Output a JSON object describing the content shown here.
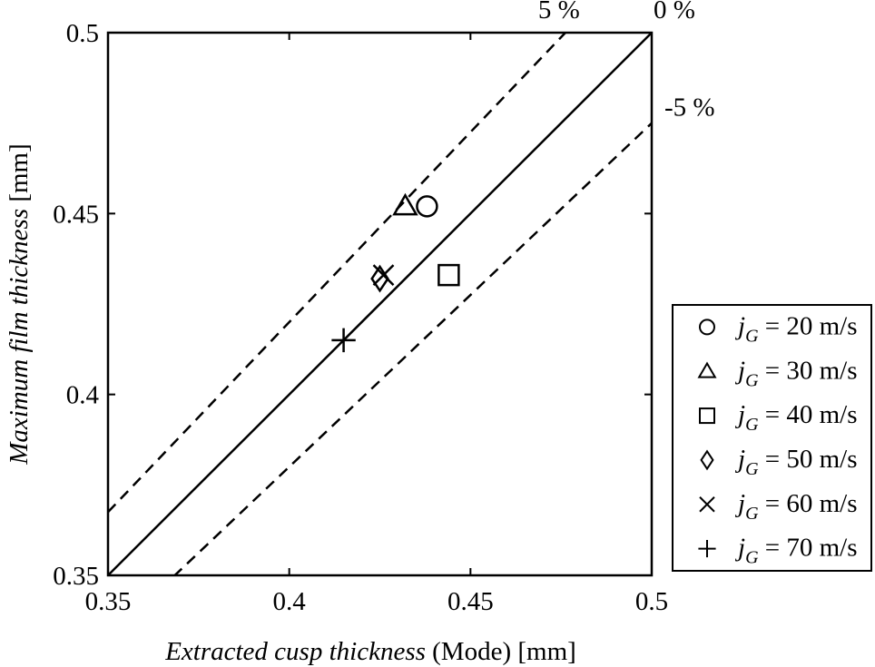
{
  "chart_data": {
    "type": "scatter",
    "x_label": "Extracted cusp thickness (Mode) [mm]",
    "y_label": "Maximum film thickness  [mm]",
    "xlim": [
      0.35,
      0.5
    ],
    "ylim": [
      0.35,
      0.5
    ],
    "xticks": [
      0.35,
      0.4,
      0.45,
      0.5
    ],
    "yticks": [
      0.35,
      0.4,
      0.45,
      0.5
    ],
    "reference_lines": [
      {
        "label": "5 %",
        "percent": 5
      },
      {
        "label": "0 %",
        "percent": 0
      },
      {
        "label": "-5 %",
        "percent": -5
      }
    ],
    "series": [
      {
        "name": "jG = 20 m/s",
        "marker": "circle",
        "color": "#000000",
        "x": [
          0.438
        ],
        "values": [
          0.452
        ]
      },
      {
        "name": "jG = 30 m/s",
        "marker": "triangle",
        "color": "#000000",
        "x": [
          0.432
        ],
        "values": [
          0.452
        ]
      },
      {
        "name": "jG = 40 m/s",
        "marker": "square",
        "color": "#000000",
        "x": [
          0.444
        ],
        "values": [
          0.433
        ]
      },
      {
        "name": "jG = 50 m/s",
        "marker": "diamond",
        "color": "#000000",
        "x": [
          0.425
        ],
        "values": [
          0.432
        ]
      },
      {
        "name": "jG = 60 m/s",
        "marker": "x",
        "color": "#000000",
        "x": [
          0.426
        ],
        "values": [
          0.433
        ]
      },
      {
        "name": "jG = 70 m/s",
        "marker": "plus",
        "color": "#000000",
        "x": [
          0.415
        ],
        "values": [
          0.415
        ]
      }
    ]
  }
}
